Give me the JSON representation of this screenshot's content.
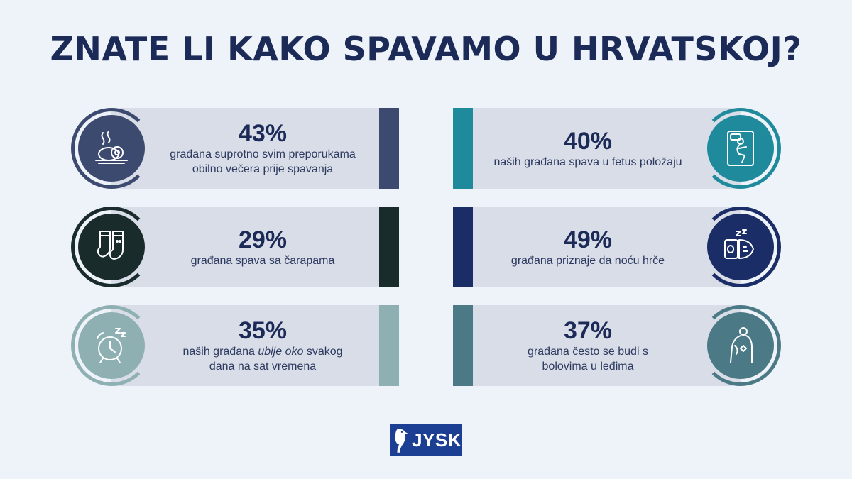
{
  "title": "ZNATE LI KAKO SPAVAMO U HRVATSKOJ?",
  "cards": [
    {
      "pct": "43%",
      "line1": "građana suprotno svim preporukama",
      "line2": "obilno večera prije spavanja",
      "color": "#3d4a70",
      "icon": "dinner-plate-icon"
    },
    {
      "pct": "40%",
      "line1": "naših građana spava u fetus položaju",
      "line2": "",
      "color": "#1f8a9c",
      "icon": "fetal-sleeping-position-icon"
    },
    {
      "pct": "29%",
      "line1": "građana spava sa čarapama",
      "line2": "",
      "color": "#1a2b2c",
      "icon": "socks-icon"
    },
    {
      "pct": "49%",
      "line1": "građana priznaje da noću hrče",
      "line2": "",
      "color": "#1b2d66",
      "icon": "snoring-icon"
    },
    {
      "pct": "35%",
      "line1a": "naših građana ",
      "line1it": "ubije oko",
      "line1b": " svakog",
      "line2": "dana na sat vremena",
      "color": "#8fb0b2",
      "icon": "alarm-clock-icon"
    },
    {
      "pct": "37%",
      "line1": "građana često se budi s",
      "line2": "bolovima u leđima",
      "color": "#4b7a86",
      "icon": "back-pain-icon"
    }
  ],
  "logo": {
    "text": "JYSK",
    "icon": "jysk-bird-icon",
    "color": "#1c3f94"
  }
}
